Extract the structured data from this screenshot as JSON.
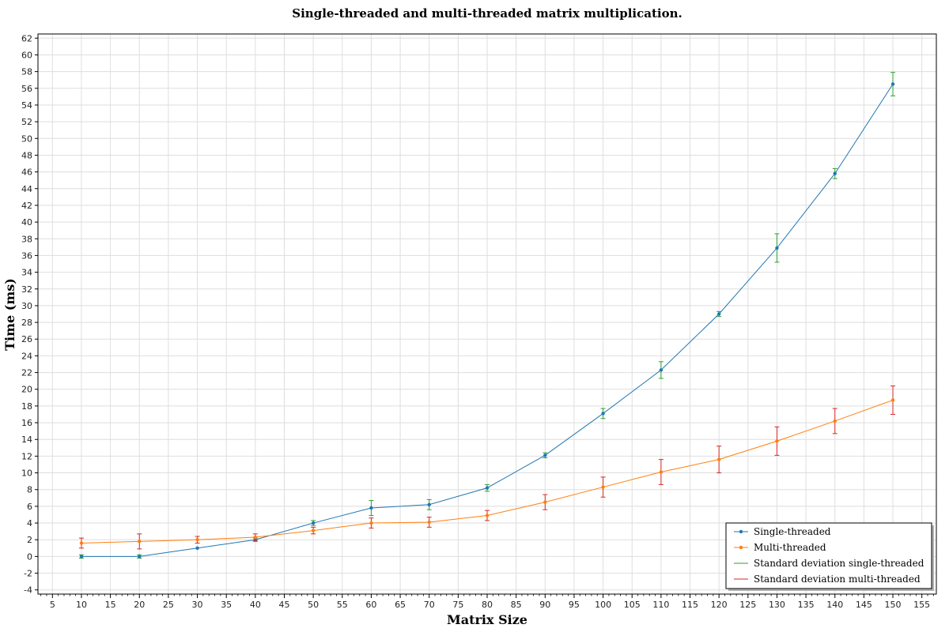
{
  "chart_data": {
    "type": "line",
    "title": "Single-threaded and multi-threaded matrix multiplication.",
    "xlabel": "Matrix Size",
    "ylabel": "Time (ms)",
    "xlim": [
      2.5,
      157.5
    ],
    "ylim": [
      -4.5,
      62.5
    ],
    "x_ticks": [
      5,
      10,
      15,
      20,
      25,
      30,
      35,
      40,
      45,
      50,
      55,
      60,
      65,
      70,
      75,
      80,
      85,
      90,
      95,
      100,
      105,
      110,
      115,
      120,
      125,
      130,
      135,
      140,
      145,
      150,
      155
    ],
    "y_ticks": [
      -4,
      -2,
      0,
      2,
      4,
      6,
      8,
      10,
      12,
      14,
      16,
      18,
      20,
      22,
      24,
      26,
      28,
      30,
      32,
      34,
      36,
      38,
      40,
      42,
      44,
      46,
      48,
      50,
      52,
      54,
      56,
      58,
      60,
      62
    ],
    "grid": true,
    "legend_position": "bottom-right",
    "x": [
      10,
      20,
      30,
      40,
      50,
      60,
      70,
      80,
      90,
      100,
      110,
      120,
      130,
      140,
      150
    ],
    "series": [
      {
        "name": "Single-threaded",
        "color": "#1f77b4",
        "errorbar_color": "#2ca02c",
        "values": [
          0.0,
          0.0,
          1.0,
          2.0,
          4.0,
          5.8,
          6.2,
          8.2,
          12.1,
          17.1,
          22.3,
          29.0,
          36.9,
          45.8,
          56.5
        ],
        "std": [
          0.2,
          0.2,
          0.0,
          0.2,
          0.3,
          0.9,
          0.6,
          0.4,
          0.3,
          0.6,
          1.0,
          0.3,
          1.7,
          0.6,
          1.4
        ]
      },
      {
        "name": "Multi-threaded",
        "color": "#ff7f0e",
        "errorbar_color": "#d62728",
        "values": [
          1.6,
          1.8,
          2.0,
          2.3,
          3.1,
          4.0,
          4.1,
          4.9,
          6.5,
          8.3,
          10.1,
          11.6,
          13.8,
          16.2,
          18.7
        ],
        "std": [
          0.6,
          0.9,
          0.4,
          0.4,
          0.4,
          0.6,
          0.6,
          0.6,
          0.9,
          1.2,
          1.5,
          1.6,
          1.7,
          1.5,
          1.7
        ]
      }
    ],
    "legend": [
      {
        "label": "Single-threaded",
        "color": "#1f77b4",
        "marker": true
      },
      {
        "label": "Multi-threaded",
        "color": "#ff7f0e",
        "marker": true
      },
      {
        "label": "Standard deviation single-threaded",
        "color": "#2ca02c",
        "marker": false
      },
      {
        "label": "Standard deviation multi-threaded",
        "color": "#d62728",
        "marker": false
      }
    ]
  }
}
